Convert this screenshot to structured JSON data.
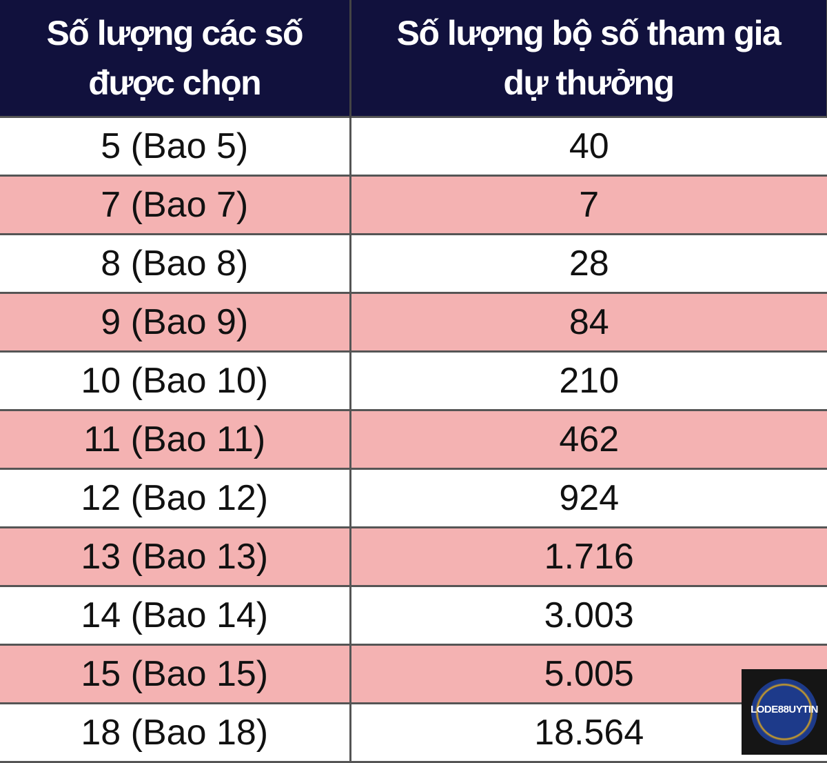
{
  "table": {
    "header": [
      [
        "Số lượng các số",
        "được chọn"
      ],
      [
        "Số lượng bộ số tham gia",
        "dự thưởng"
      ]
    ],
    "rows": [
      [
        "5 (Bao 5)",
        "40"
      ],
      [
        "7 (Bao 7)",
        "7"
      ],
      [
        "8 (Bao 8)",
        "28"
      ],
      [
        "9 (Bao 9)",
        "84"
      ],
      [
        "10 (Bao 10)",
        "210"
      ],
      [
        "11 (Bao 11)",
        "462"
      ],
      [
        "12 (Bao 12)",
        "924"
      ],
      [
        "13 (Bao 13)",
        "1.716"
      ],
      [
        "14 (Bao 14)",
        "3.003"
      ],
      [
        "15 (Bao 15)",
        "5.005"
      ],
      [
        "18 (Bao 18)",
        "18.564"
      ]
    ]
  },
  "logo": {
    "text": "LODE88UYTIN"
  }
}
